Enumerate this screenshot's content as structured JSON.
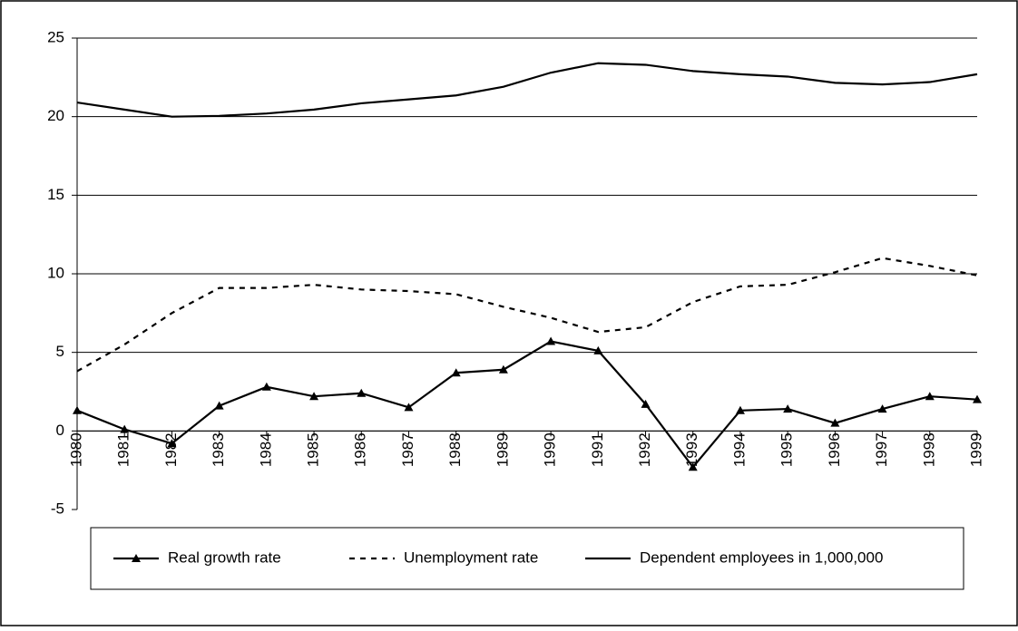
{
  "chart_data": {
    "type": "line",
    "categories": [
      "1980",
      "1981",
      "1982",
      "1983",
      "1984",
      "1985",
      "1986",
      "1987",
      "1988",
      "1989",
      "1990",
      "1991",
      "1992",
      "1993",
      "1994",
      "1995",
      "1996",
      "1997",
      "1998",
      "1999"
    ],
    "series": [
      {
        "name": "Real growth rate",
        "color": "#000000",
        "style": "solid",
        "marker": "triangle",
        "values": [
          1.3,
          0.1,
          -0.8,
          1.6,
          2.8,
          2.2,
          2.4,
          1.5,
          3.7,
          3.9,
          5.7,
          5.1,
          1.7,
          -2.3,
          1.3,
          1.4,
          0.5,
          1.4,
          2.2,
          2.0
        ]
      },
      {
        "name": "Unemployment rate",
        "color": "#000000",
        "style": "dashed",
        "marker": "none",
        "values": [
          3.8,
          5.5,
          7.5,
          9.1,
          9.1,
          9.3,
          9.0,
          8.9,
          8.7,
          7.9,
          7.2,
          6.3,
          6.6,
          8.2,
          9.2,
          9.3,
          10.1,
          11.0,
          10.5,
          9.9
        ]
      },
      {
        "name": "Dependent employees in 1,000,000",
        "color": "#000000",
        "style": "solid",
        "marker": "none",
        "values": [
          20.9,
          20.45,
          20.0,
          20.05,
          20.2,
          20.45,
          20.85,
          21.1,
          21.35,
          21.9,
          22.8,
          23.4,
          23.3,
          22.9,
          22.7,
          22.55,
          22.15,
          22.05,
          22.2,
          22.7
        ]
      }
    ],
    "ylim": [
      -5,
      25
    ],
    "yticks": [
      -5,
      0,
      5,
      10,
      15,
      20,
      25
    ],
    "grid": true,
    "legend": "bottom"
  }
}
